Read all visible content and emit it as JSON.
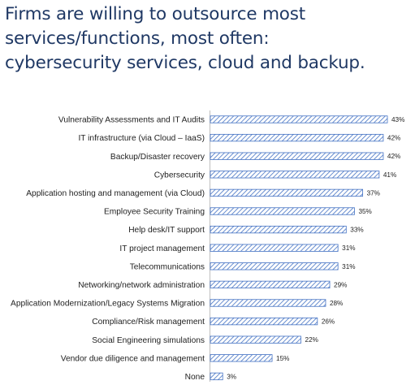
{
  "title": {
    "line1": "Firms are willing to outsource most",
    "line2": "services/functions, most often:",
    "line3": "cybersecurity services, cloud and backup."
  },
  "chart_data": {
    "type": "bar",
    "orientation": "horizontal",
    "categories": [
      "Vulnerability Assessments and IT Audits",
      "IT infrastructure (via Cloud – IaaS)",
      "Backup/Disaster recovery",
      "Cybersecurity",
      "Application hosting and management (via Cloud)",
      "Employee Security Training",
      "Help desk/IT support",
      "IT project management",
      "Telecommunications",
      "Networking/network administration",
      "Application Modernization/Legacy Systems Migration",
      "Compliance/Risk management",
      "Social Engineering simulations",
      "Vendor due diligence and management",
      "None"
    ],
    "values": [
      43,
      42,
      42,
      41,
      37,
      35,
      33,
      31,
      31,
      29,
      28,
      26,
      22,
      15,
      3
    ],
    "value_labels": [
      "43%",
      "42%",
      "42%",
      "41%",
      "37%",
      "35%",
      "33%",
      "31%",
      "31%",
      "29%",
      "28%",
      "26%",
      "22%",
      "15%",
      "3%"
    ],
    "xlim": [
      0,
      43
    ],
    "bar_fill": "hatched",
    "colors": {
      "bar_stroke": "#4472c4",
      "hatch": "#4472c4",
      "axis": "#bfbfbf",
      "title": "#1f3864"
    }
  }
}
